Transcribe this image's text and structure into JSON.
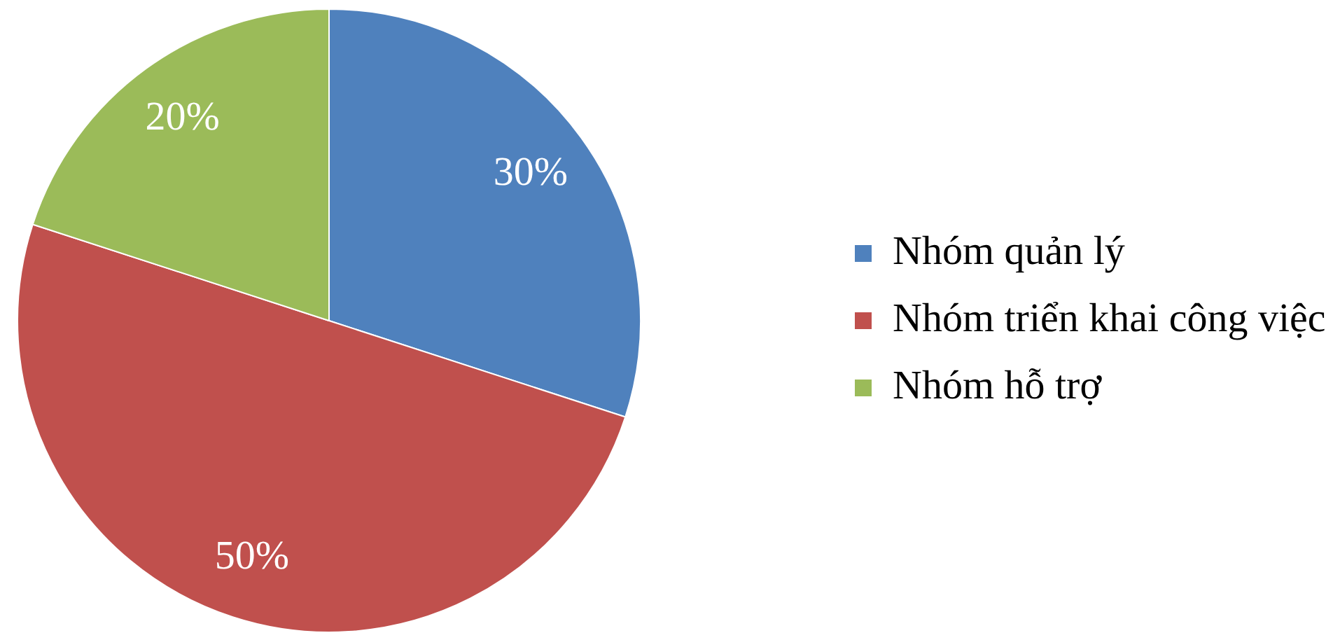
{
  "chart_data": {
    "type": "pie",
    "categories": [
      "Nhóm quản lý",
      "Nhóm triển khai công việc",
      "Nhóm hỗ trợ"
    ],
    "values": [
      30,
      50,
      20
    ],
    "colors": [
      "#4f81bd",
      "#c0504d",
      "#9bbb59"
    ],
    "value_labels": [
      "30%",
      "50%",
      "20%"
    ],
    "legend": "right"
  }
}
